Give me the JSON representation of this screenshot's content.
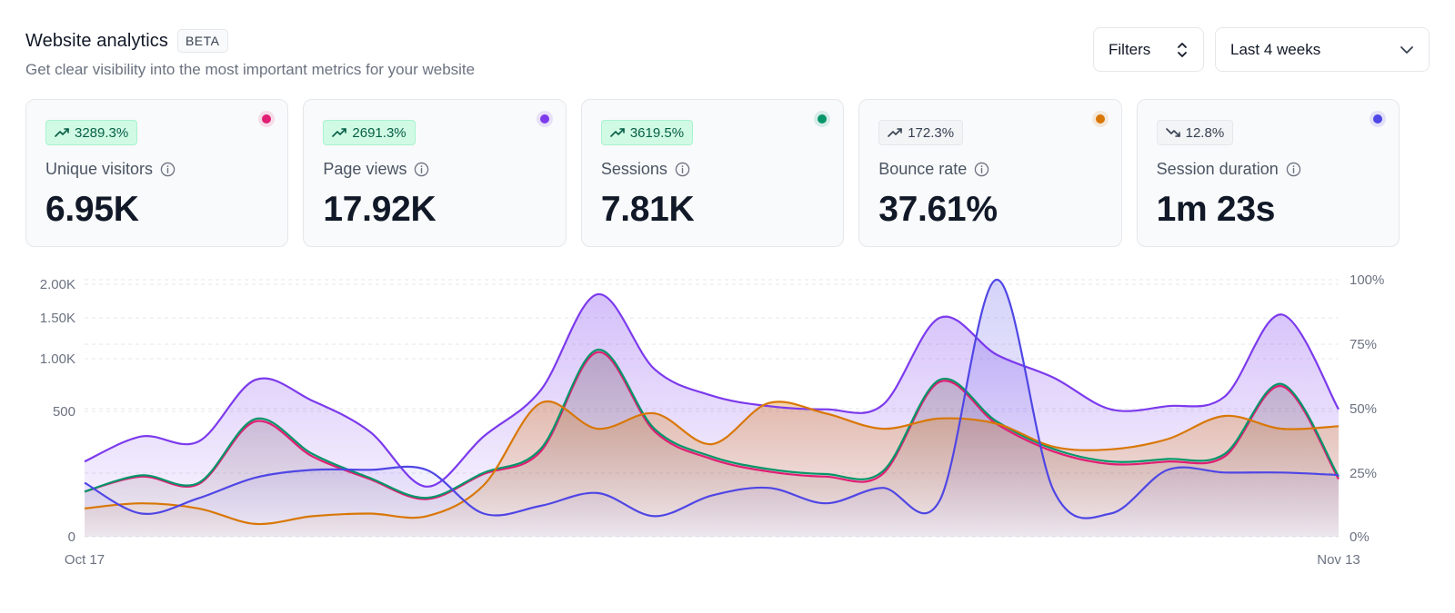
{
  "header": {
    "title": "Website analytics",
    "badge": "BETA",
    "subtitle": "Get clear visibility into the most important metrics for your website"
  },
  "controls": {
    "filters_label": "Filters",
    "range_label": "Last 4 weeks"
  },
  "cards": [
    {
      "label": "Unique visitors",
      "change": "3289.3%",
      "trend": "up",
      "value": "6.95K",
      "color": "#e11d74"
    },
    {
      "label": "Page views",
      "change": "2691.3%",
      "trend": "up",
      "value": "17.92K",
      "color": "#7c3aed"
    },
    {
      "label": "Sessions",
      "change": "3619.5%",
      "trend": "up",
      "value": "7.81K",
      "color": "#059669"
    },
    {
      "label": "Bounce rate",
      "change": "172.3%",
      "trend": "up-neutral",
      "value": "37.61%",
      "color": "#d97706"
    },
    {
      "label": "Session duration",
      "change": "12.8%",
      "trend": "down-neutral",
      "value": "1m 23s",
      "color": "#4f46e5"
    }
  ],
  "chart_data": {
    "type": "area",
    "x_labels": [
      "Oct 17",
      "Nov 13"
    ],
    "y_left_ticks": [
      "2.00K",
      "1.50K",
      "1.00K",
      "500",
      "0"
    ],
    "y_right_ticks": [
      "100%",
      "75%",
      "50%",
      "25%",
      "0%"
    ],
    "grid": true,
    "series": [
      {
        "name": "Page views",
        "axis": "left",
        "color": "#7c3aed",
        "fill": true,
        "values": [
          300,
          400,
          380,
          800,
          600,
          420,
          200,
          400,
          700,
          1850,
          900,
          650,
          550,
          520,
          560,
          1500,
          1050,
          820,
          520,
          550,
          640,
          1550,
          520
        ]
      },
      {
        "name": "Unique visitors",
        "axis": "left",
        "color": "#e11d74",
        "fill": true,
        "values": [
          180,
          240,
          210,
          460,
          320,
          230,
          150,
          250,
          340,
          1080,
          420,
          310,
          260,
          240,
          250,
          780,
          450,
          340,
          290,
          300,
          320,
          740,
          230
        ]
      },
      {
        "name": "Sessions",
        "axis": "left",
        "color": "#059669",
        "fill": true,
        "values": [
          180,
          245,
          215,
          470,
          330,
          235,
          155,
          255,
          350,
          1110,
          430,
          320,
          270,
          250,
          260,
          800,
          460,
          350,
          300,
          310,
          330,
          760,
          240
        ]
      },
      {
        "name": "Bounce rate",
        "axis": "right",
        "color": "#d97706",
        "fill": true,
        "values": [
          11,
          13,
          11,
          5,
          8,
          9,
          8,
          20,
          52,
          42,
          48,
          36,
          52,
          48,
          42,
          46,
          44,
          35,
          34,
          38,
          47,
          42,
          43
        ]
      },
      {
        "name": "Session duration",
        "axis": "right",
        "color": "#4f46e5",
        "fill": true,
        "values": [
          21,
          9,
          15,
          23,
          26,
          26,
          26,
          9,
          12,
          17,
          8,
          16,
          19,
          13,
          19,
          14,
          100,
          18,
          9,
          26,
          25,
          25,
          24
        ]
      }
    ]
  }
}
